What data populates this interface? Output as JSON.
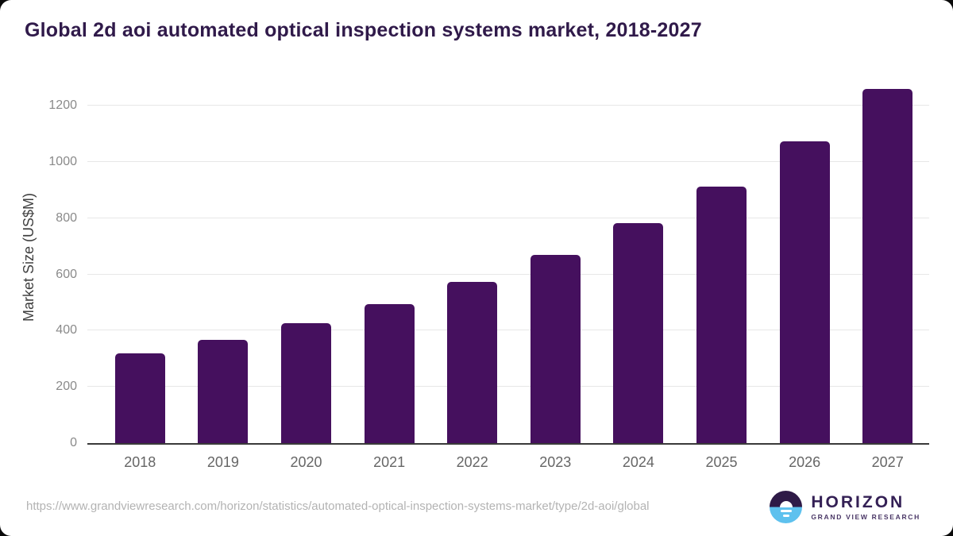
{
  "title": "Global 2d aoi automated optical inspection systems market, 2018-2027",
  "source_url": "https://www.grandviewresearch.com/horizon/statistics/automated-optical-inspection-systems-market/type/2d-aoi/global",
  "logo": {
    "name": "HORIZON",
    "subtitle": "GRAND VIEW RESEARCH"
  },
  "colors": {
    "bar_fill": "#45105e",
    "title_text": "#301a4a",
    "axis_line": "#3a3a3a",
    "gridline": "#e7e7e7",
    "y_tick_text": "#8a8a8a",
    "x_tick_text": "#666666",
    "url_text": "#b3b3b3",
    "logo_purple": "#2e1a47",
    "logo_blue": "#5ec1ee",
    "logo_text": "#342055"
  },
  "chart_data": {
    "type": "bar",
    "title": "Global 2d aoi automated optical inspection systems market, 2018-2027",
    "categories": [
      "2018",
      "2019",
      "2020",
      "2021",
      "2022",
      "2023",
      "2024",
      "2025",
      "2026",
      "2027"
    ],
    "values": [
      318,
      366,
      426,
      494,
      572,
      668,
      781,
      912,
      1073,
      1259
    ],
    "xlabel": "",
    "ylabel": "Market Size (US$M)",
    "ylim": [
      0,
      1320
    ],
    "yticks": [
      0,
      200,
      400,
      600,
      800,
      1000,
      1200
    ],
    "grid": true,
    "legend_position": "none",
    "bar_color": "#45105e"
  }
}
